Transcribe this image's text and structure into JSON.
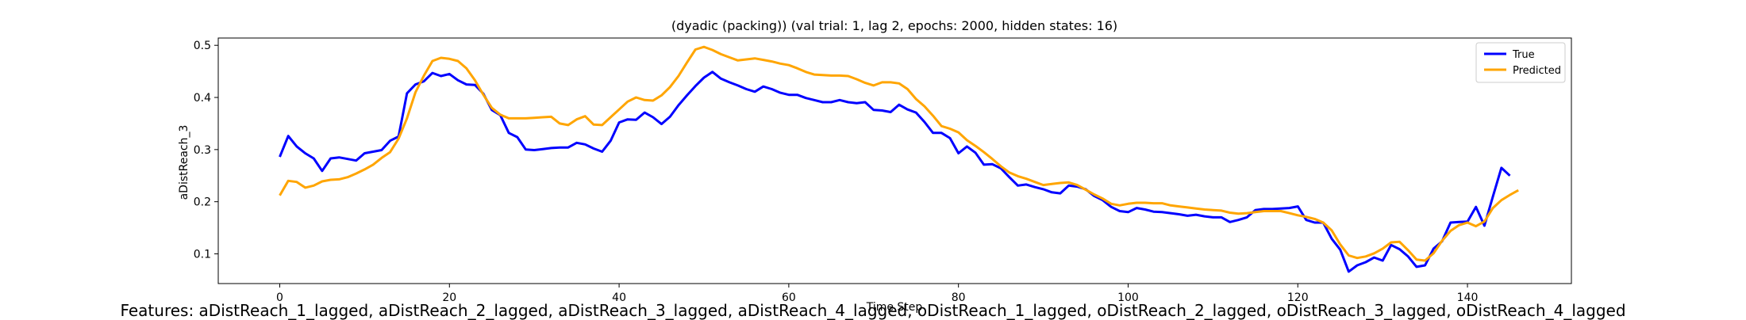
{
  "chart_data": {
    "type": "line",
    "title": "(dyadic (packing)) (val trial: 1, lag 2, epochs: 2000, hidden states: 16)",
    "xlabel": "Time Step",
    "ylabel": "aDistReach_3",
    "xlim": [
      -7.25,
      152.25
    ],
    "ylim": [
      0.043,
      0.514
    ],
    "xticks": [
      0,
      20,
      40,
      60,
      80,
      100,
      120,
      140
    ],
    "yticks": [
      0.1,
      0.2,
      0.3,
      0.4,
      0.5
    ],
    "ytick_labels": [
      "0.1",
      "0.2",
      "0.3",
      "0.4",
      "0.5"
    ],
    "grid": false,
    "legend_position": "top-right",
    "series": [
      {
        "name": "True",
        "color": "#0000ff",
        "values": [
          0.286,
          0.326,
          0.306,
          0.293,
          0.283,
          0.259,
          0.283,
          0.285,
          0.282,
          0.279,
          0.293,
          0.296,
          0.299,
          0.317,
          0.325,
          0.408,
          0.425,
          0.431,
          0.447,
          0.441,
          0.445,
          0.433,
          0.425,
          0.424,
          0.407,
          0.376,
          0.366,
          0.332,
          0.324,
          0.3,
          0.299,
          0.301,
          0.303,
          0.304,
          0.304,
          0.313,
          0.31,
          0.302,
          0.296,
          0.317,
          0.352,
          0.358,
          0.357,
          0.371,
          0.362,
          0.349,
          0.363,
          0.385,
          0.404,
          0.422,
          0.438,
          0.449,
          0.436,
          0.429,
          0.423,
          0.416,
          0.411,
          0.421,
          0.416,
          0.409,
          0.405,
          0.405,
          0.399,
          0.395,
          0.391,
          0.391,
          0.395,
          0.391,
          0.389,
          0.391,
          0.376,
          0.375,
          0.372,
          0.386,
          0.377,
          0.371,
          0.353,
          0.332,
          0.332,
          0.322,
          0.293,
          0.306,
          0.294,
          0.271,
          0.272,
          0.264,
          0.247,
          0.231,
          0.233,
          0.228,
          0.224,
          0.218,
          0.216,
          0.231,
          0.229,
          0.224,
          0.211,
          0.203,
          0.19,
          0.182,
          0.18,
          0.188,
          0.185,
          0.181,
          0.18,
          0.178,
          0.176,
          0.173,
          0.175,
          0.172,
          0.17,
          0.17,
          0.161,
          0.165,
          0.17,
          0.184,
          0.186,
          0.186,
          0.187,
          0.188,
          0.191,
          0.165,
          0.16,
          0.16,
          0.129,
          0.108,
          0.066,
          0.078,
          0.084,
          0.093,
          0.087,
          0.117,
          0.109,
          0.095,
          0.075,
          0.078,
          0.11,
          0.124,
          0.16,
          0.161,
          0.162,
          0.19,
          0.154,
          0.21,
          0.265,
          0.25
        ]
      },
      {
        "name": "Predicted",
        "color": "#ffa500",
        "values": [
          0.212,
          0.24,
          0.238,
          0.227,
          0.231,
          0.239,
          0.242,
          0.243,
          0.247,
          0.254,
          0.262,
          0.271,
          0.284,
          0.295,
          0.321,
          0.36,
          0.41,
          0.442,
          0.47,
          0.476,
          0.474,
          0.47,
          0.456,
          0.433,
          0.405,
          0.38,
          0.367,
          0.36,
          0.36,
          0.36,
          0.361,
          0.362,
          0.363,
          0.35,
          0.347,
          0.358,
          0.364,
          0.348,
          0.347,
          0.362,
          0.377,
          0.392,
          0.4,
          0.395,
          0.394,
          0.404,
          0.42,
          0.441,
          0.467,
          0.492,
          0.497,
          0.491,
          0.483,
          0.477,
          0.471,
          0.473,
          0.475,
          0.472,
          0.469,
          0.465,
          0.462,
          0.456,
          0.449,
          0.444,
          0.443,
          0.442,
          0.442,
          0.441,
          0.435,
          0.428,
          0.423,
          0.429,
          0.429,
          0.427,
          0.416,
          0.397,
          0.383,
          0.365,
          0.345,
          0.34,
          0.333,
          0.318,
          0.307,
          0.295,
          0.282,
          0.268,
          0.256,
          0.249,
          0.244,
          0.238,
          0.232,
          0.234,
          0.236,
          0.237,
          0.232,
          0.223,
          0.214,
          0.206,
          0.196,
          0.193,
          0.196,
          0.198,
          0.198,
          0.197,
          0.197,
          0.193,
          0.191,
          0.189,
          0.187,
          0.185,
          0.184,
          0.183,
          0.179,
          0.177,
          0.178,
          0.18,
          0.182,
          0.182,
          0.182,
          0.178,
          0.174,
          0.171,
          0.167,
          0.16,
          0.145,
          0.118,
          0.097,
          0.092,
          0.095,
          0.101,
          0.11,
          0.122,
          0.123,
          0.107,
          0.089,
          0.087,
          0.101,
          0.125,
          0.144,
          0.155,
          0.16,
          0.153,
          0.162,
          0.188,
          0.203,
          0.213,
          0.222
        ]
      }
    ]
  },
  "caption": "Features: aDistReach_1_lagged, aDistReach_2_lagged, aDistReach_3_lagged, aDistReach_4_lagged, oDistReach_1_lagged, oDistReach_2_lagged, oDistReach_3_lagged, oDistReach_4_lagged"
}
